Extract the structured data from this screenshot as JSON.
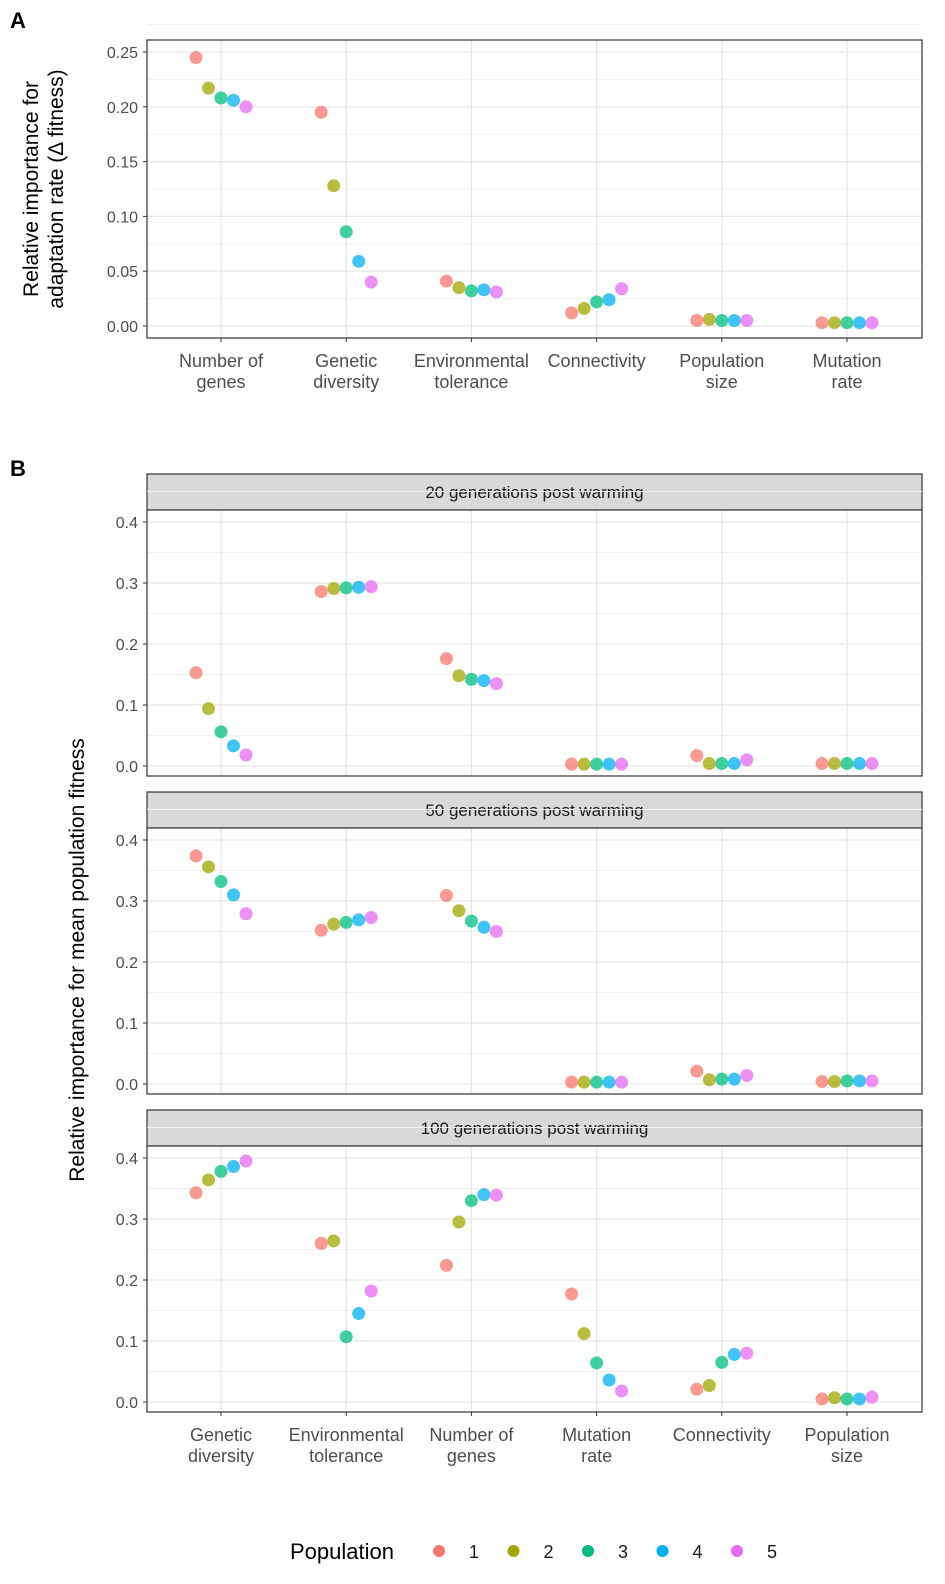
{
  "colors": {
    "1": "#F8766D",
    "2": "#A3A500",
    "3": "#00BF7D",
    "4": "#00B0F6",
    "5": "#E76BF3"
  },
  "legend": {
    "title": "Population",
    "items": [
      "1",
      "2",
      "3",
      "4",
      "5"
    ]
  },
  "chart_data": [
    {
      "type": "scatter",
      "panel_label": "A",
      "ylabel": [
        "Relative importance for",
        "adaptation rate (Δ fitness)"
      ],
      "ylim": [
        -0.01,
        0.262
      ],
      "yticks": [
        "0.00",
        "0.05",
        "0.10",
        "0.15",
        "0.20",
        "0.25"
      ],
      "ytick_values": [
        0,
        0.05,
        0.1,
        0.15,
        0.2,
        0.25
      ],
      "categories": [
        [
          "Number of",
          "genes"
        ],
        [
          "Genetic",
          "diversity"
        ],
        [
          "Environmental",
          "tolerance"
        ],
        [
          "Connectivity"
        ],
        [
          "Population",
          "size"
        ],
        [
          "Mutation",
          "rate"
        ]
      ],
      "series": [
        {
          "name": "1",
          "values": [
            0.245,
            0.195,
            0.041,
            0.012,
            0.005,
            0.003
          ]
        },
        {
          "name": "2",
          "values": [
            0.217,
            0.128,
            0.035,
            0.016,
            0.006,
            0.003
          ]
        },
        {
          "name": "3",
          "values": [
            0.208,
            0.086,
            0.032,
            0.022,
            0.005,
            0.003
          ]
        },
        {
          "name": "4",
          "values": [
            0.206,
            0.059,
            0.033,
            0.024,
            0.005,
            0.003
          ]
        },
        {
          "name": "5",
          "values": [
            0.2,
            0.04,
            0.031,
            0.034,
            0.005,
            0.003
          ]
        }
      ]
    },
    {
      "type": "scatter",
      "panel_label": "B",
      "ylabel": "Relative importance for mean population fitness",
      "ylim": [
        -0.02,
        0.42
      ],
      "yticks": [
        "0.0",
        "0.1",
        "0.2",
        "0.3",
        "0.4"
      ],
      "ytick_values": [
        0,
        0.1,
        0.2,
        0.3,
        0.4
      ],
      "categories": [
        [
          "Genetic",
          "diversity"
        ],
        [
          "Environmental",
          "tolerance"
        ],
        [
          "Number of",
          "genes"
        ],
        [
          "Mutation",
          "rate"
        ],
        [
          "Connectivity"
        ],
        [
          "Population",
          "size"
        ]
      ],
      "facets": [
        {
          "title": "20 generations post warming",
          "series": [
            {
              "name": "1",
              "values": [
                0.153,
                0.286,
                0.176,
                0.003,
                0.017,
                0.004
              ]
            },
            {
              "name": "2",
              "values": [
                0.094,
                0.291,
                0.148,
                0.003,
                0.004,
                0.004
              ]
            },
            {
              "name": "3",
              "values": [
                0.056,
                0.292,
                0.142,
                0.003,
                0.004,
                0.004
              ]
            },
            {
              "name": "4",
              "values": [
                0.033,
                0.293,
                0.14,
                0.003,
                0.004,
                0.004
              ]
            },
            {
              "name": "5",
              "values": [
                0.018,
                0.294,
                0.135,
                0.003,
                0.01,
                0.004
              ]
            }
          ]
        },
        {
          "title": "50 generations post warming",
          "series": [
            {
              "name": "1",
              "values": [
                0.374,
                0.252,
                0.309,
                0.003,
                0.021,
                0.004
              ]
            },
            {
              "name": "2",
              "values": [
                0.356,
                0.262,
                0.284,
                0.003,
                0.007,
                0.004
              ]
            },
            {
              "name": "3",
              "values": [
                0.332,
                0.265,
                0.267,
                0.003,
                0.008,
                0.005
              ]
            },
            {
              "name": "4",
              "values": [
                0.31,
                0.269,
                0.257,
                0.003,
                0.008,
                0.005
              ]
            },
            {
              "name": "5",
              "values": [
                0.279,
                0.273,
                0.25,
                0.003,
                0.014,
                0.005
              ]
            }
          ]
        },
        {
          "title": "100 generations post warming",
          "series": [
            {
              "name": "1",
              "values": [
                0.343,
                0.26,
                0.224,
                0.177,
                0.021,
                0.005
              ]
            },
            {
              "name": "2",
              "values": [
                0.364,
                0.264,
                0.295,
                0.112,
                0.027,
                0.007
              ]
            },
            {
              "name": "3",
              "values": [
                0.378,
                0.107,
                0.33,
                0.064,
                0.065,
                0.005
              ]
            },
            {
              "name": "4",
              "values": [
                0.386,
                0.145,
                0.34,
                0.036,
                0.078,
                0.005
              ]
            },
            {
              "name": "5",
              "values": [
                0.395,
                0.182,
                0.339,
                0.018,
                0.08,
                0.008
              ]
            }
          ]
        }
      ]
    }
  ]
}
